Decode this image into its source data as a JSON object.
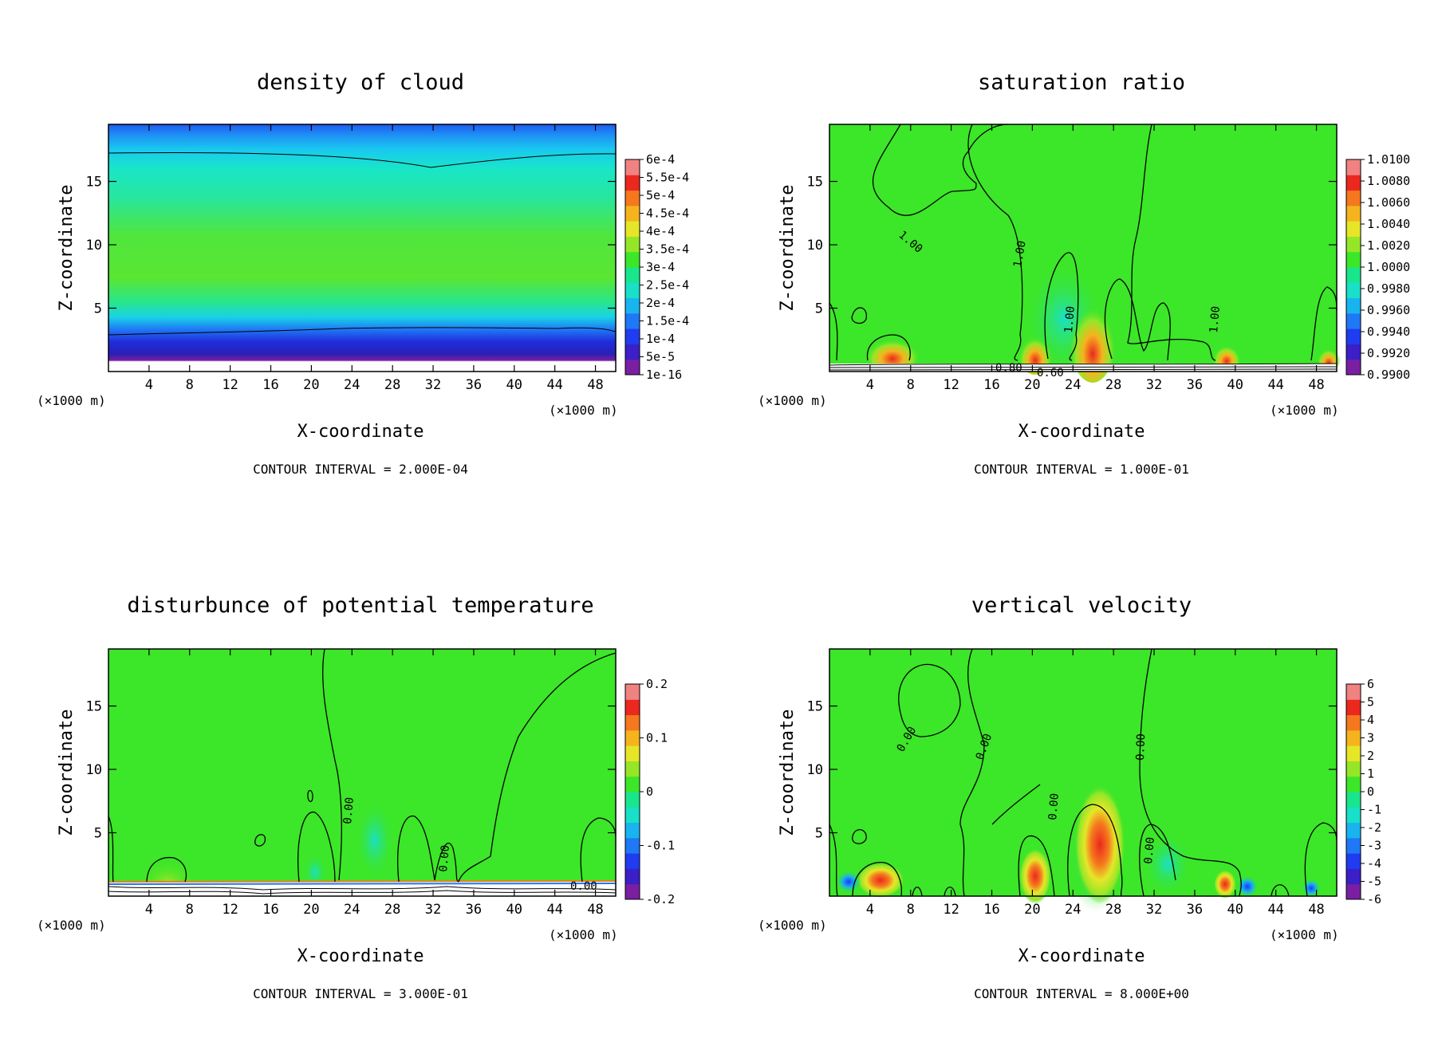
{
  "colors": {
    "scale": [
      "#7a1fa2",
      "#3b1fc8",
      "#1f3cf0",
      "#1f78f5",
      "#19b4f0",
      "#19e0c8",
      "#19e68c",
      "#3ce628",
      "#96e628",
      "#e6e628",
      "#f5b41e",
      "#f5781e",
      "#eb281e",
      "#f08282"
    ]
  },
  "chart_data": [
    {
      "type": "heatmap",
      "title": "density of cloud",
      "xlabel": "X-coordinate",
      "ylabel": "Z-coordinate",
      "x_unit": "(×1000 m)",
      "x_unit_right": "(×1000 m)",
      "xlim": [
        0,
        50
      ],
      "ylim": [
        0,
        19.5
      ],
      "x_ticks": [
        "4",
        "8",
        "12",
        "16",
        "20",
        "24",
        "28",
        "32",
        "36",
        "40",
        "44",
        "48"
      ],
      "y_ticks": [
        "5",
        "10",
        "15"
      ],
      "colorbar_labels": [
        "1e-16",
        "5e-5",
        "1e-4",
        "1.5e-4",
        "2e-4",
        "2.5e-4",
        "3e-4",
        "3.5e-4",
        "4e-4",
        "4.5e-4",
        "5e-4",
        "5.5e-4",
        "6e-4"
      ],
      "contour_labels": [],
      "contour_interval": "CONTOUR INTERVAL = 2.000E-04"
    },
    {
      "type": "heatmap",
      "title": "saturation ratio",
      "xlabel": "X-coordinate",
      "ylabel": "Z-coordinate",
      "x_unit": "(×1000 m)",
      "x_unit_right": "(×1000 m)",
      "xlim": [
        0,
        50
      ],
      "ylim": [
        0,
        19.5
      ],
      "x_ticks": [
        "4",
        "8",
        "12",
        "16",
        "20",
        "24",
        "28",
        "32",
        "36",
        "40",
        "44",
        "48"
      ],
      "y_ticks": [
        "5",
        "10",
        "15"
      ],
      "colorbar_labels": [
        "0.9900",
        "0.9920",
        "0.9940",
        "0.9960",
        "0.9980",
        "1.0000",
        "1.0020",
        "1.0040",
        "1.0060",
        "1.0080",
        "1.0100"
      ],
      "contour_labels": [
        "1.00",
        "1.00",
        "1.00",
        "1.00",
        "0.80",
        "0.60"
      ],
      "contour_interval": "CONTOUR INTERVAL = 1.000E-01"
    },
    {
      "type": "heatmap",
      "title": "disturbunce of potential temperature",
      "xlabel": "X-coordinate",
      "ylabel": "Z-coordinate",
      "x_unit": "(×1000 m)",
      "x_unit_right": "(×1000 m)",
      "xlim": [
        0,
        50
      ],
      "ylim": [
        0,
        19.5
      ],
      "x_ticks": [
        "4",
        "8",
        "12",
        "16",
        "20",
        "24",
        "28",
        "32",
        "36",
        "40",
        "44",
        "48"
      ],
      "y_ticks": [
        "5",
        "10",
        "15"
      ],
      "colorbar_labels": [
        "-0.2",
        "-0.1",
        "0",
        "0.1",
        "0.2"
      ],
      "contour_labels": [
        "0.00",
        "0.00",
        "0.00"
      ],
      "contour_interval": "CONTOUR INTERVAL = 3.000E-01"
    },
    {
      "type": "heatmap",
      "title": "vertical velocity",
      "xlabel": "X-coordinate",
      "ylabel": "Z-coordinate",
      "x_unit": "(×1000 m)",
      "x_unit_right": "(×1000 m)",
      "xlim": [
        0,
        50
      ],
      "ylim": [
        0,
        19.5
      ],
      "x_ticks": [
        "4",
        "8",
        "12",
        "16",
        "20",
        "24",
        "28",
        "32",
        "36",
        "40",
        "44",
        "48"
      ],
      "y_ticks": [
        "5",
        "10",
        "15"
      ],
      "colorbar_labels": [
        "-6",
        "-5",
        "-4",
        "-3",
        "-2",
        "-1",
        "0",
        "1",
        "2",
        "3",
        "4",
        "5",
        "6"
      ],
      "contour_labels": [
        "0.00",
        "0.00",
        "0.00",
        "0.00",
        "0.00"
      ],
      "contour_interval": "CONTOUR INTERVAL = 8.000E+00"
    }
  ]
}
